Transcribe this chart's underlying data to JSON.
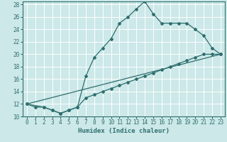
{
  "xlabel": "Humidex (Indice chaleur)",
  "bg_color": "#cce8e8",
  "grid_color": "#ffffff",
  "line_color": "#2e6e6e",
  "xlim": [
    -0.5,
    23.5
  ],
  "ylim": [
    10,
    28.5
  ],
  "xticks": [
    0,
    1,
    2,
    3,
    4,
    5,
    6,
    7,
    8,
    9,
    10,
    11,
    12,
    13,
    14,
    15,
    16,
    17,
    18,
    19,
    20,
    21,
    22,
    23
  ],
  "yticks": [
    10,
    12,
    14,
    16,
    18,
    20,
    22,
    24,
    26,
    28
  ],
  "line1_x": [
    0,
    1,
    2,
    3,
    4,
    5,
    6,
    7,
    8,
    9,
    10,
    11,
    12,
    13,
    14,
    15,
    16,
    17,
    18,
    19,
    20,
    21,
    22,
    23
  ],
  "line1_y": [
    12,
    11.5,
    11.5,
    11,
    10.5,
    11,
    11.5,
    16.5,
    19.5,
    21,
    22.5,
    25,
    26,
    27.3,
    28.5,
    26.5,
    25,
    25,
    25,
    25,
    24,
    23,
    21,
    20
  ],
  "line2_x": [
    0,
    23
  ],
  "line2_y": [
    12,
    20
  ],
  "line3_x": [
    0,
    2,
    3,
    4,
    5,
    6,
    7,
    8,
    9,
    10,
    11,
    12,
    13,
    14,
    15,
    16,
    17,
    18,
    19,
    20,
    21,
    22,
    23
  ],
  "line3_y": [
    12,
    11.5,
    11,
    10.5,
    11,
    11.5,
    13,
    13.5,
    14,
    14.5,
    15,
    15.5,
    16,
    16.5,
    17,
    17.5,
    18,
    18.5,
    19,
    19.5,
    20,
    20,
    20
  ]
}
